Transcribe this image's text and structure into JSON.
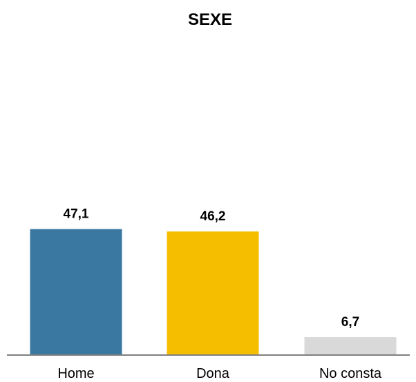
{
  "chart_data": {
    "type": "bar",
    "title": "SEXE",
    "categories": [
      "Home",
      "Dona",
      "No consta"
    ],
    "values": [
      47.1,
      46.2,
      6.7
    ],
    "value_labels": [
      "47,1",
      "46,2",
      "6,7"
    ],
    "colors": [
      "#3a78a1",
      "#f5bf00",
      "#d9d9d9"
    ],
    "axis_color": "#7f7f7f",
    "xlabel": "",
    "ylabel": "",
    "ylim": [
      0,
      100
    ],
    "grid": false,
    "legend": "none"
  }
}
